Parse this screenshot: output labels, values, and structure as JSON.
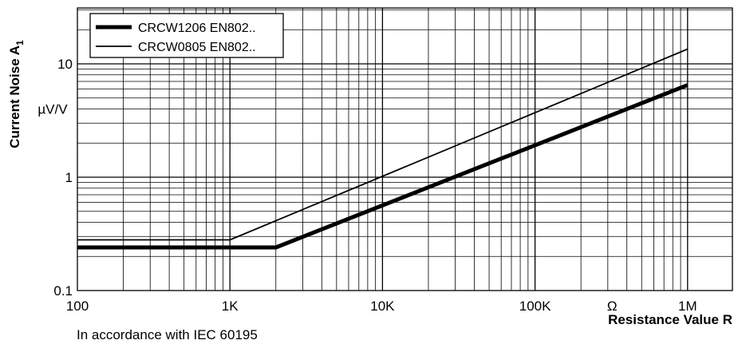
{
  "chart_data": {
    "type": "line",
    "xscale": "log",
    "yscale": "log",
    "xlim": [
      100,
      2000000
    ],
    "ylim": [
      0.1,
      50
    ],
    "grid": true,
    "legend_placement": "top-left",
    "x_ticks": [
      {
        "value": 100,
        "label": "100"
      },
      {
        "value": 1000,
        "label": "1K"
      },
      {
        "value": 10000,
        "label": "10K"
      },
      {
        "value": 100000,
        "label": "100K"
      },
      {
        "value": 1000000,
        "label": "1M"
      }
    ],
    "x_unit": "Ω",
    "x_unit_position": 320000,
    "y_ticks": [
      {
        "value": 0.1,
        "label": "0.1"
      },
      {
        "value": 1,
        "label": "1"
      },
      {
        "value": 10,
        "label": "10"
      }
    ],
    "y_unit": "µV/V",
    "y_unit_position": 4,
    "ylabel": "Current Noise A",
    "ylabel_subscript": "1",
    "xlabel": "Resistance Value R",
    "series": [
      {
        "name": "CRCW1206 EN802..",
        "line": "thick",
        "points": [
          [
            100,
            0.24
          ],
          [
            2000,
            0.24
          ],
          [
            1000000,
            6.5
          ]
        ]
      },
      {
        "name": "CRCW0805 EN802..",
        "line": "thin",
        "points": [
          [
            100,
            0.28
          ],
          [
            1000,
            0.28
          ],
          [
            1000000,
            13.5
          ]
        ]
      }
    ]
  },
  "note": "In accordance with IEC 60195"
}
